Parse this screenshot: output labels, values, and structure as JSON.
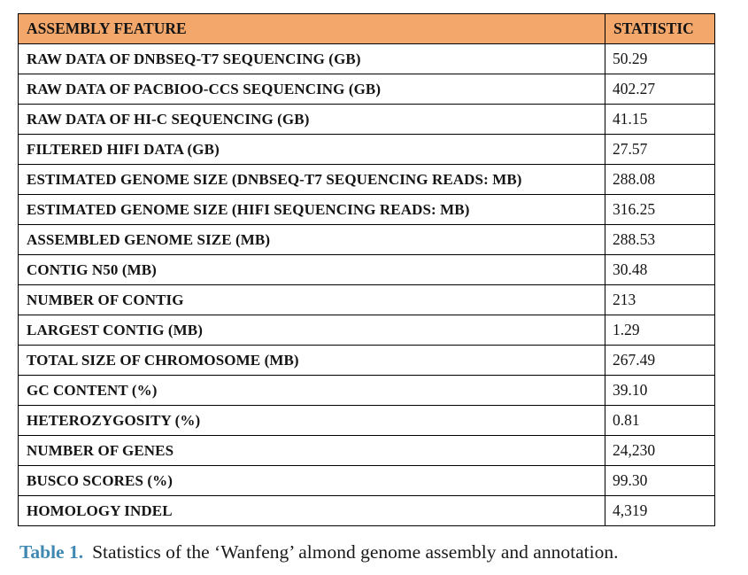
{
  "table": {
    "header": {
      "feature": "ASSEMBLY FEATURE",
      "statistic": "STATISTIC"
    },
    "rows": [
      {
        "feature": "RAW DATA OF DNBSEQ-T7 SEQUENCING (GB)",
        "statistic": "50.29"
      },
      {
        "feature": "RAW DATA OF PACBIOO-CCS SEQUENCING (GB)",
        "statistic": "402.27"
      },
      {
        "feature": "RAW DATA OF HI-C SEQUENCING (GB)",
        "statistic": "41.15"
      },
      {
        "feature": "FILTERED HIFI DATA (GB)",
        "statistic": "27.57"
      },
      {
        "feature": "ESTIMATED GENOME SIZE (DNBSEQ-T7 SEQUENCING READS: MB)",
        "statistic": "288.08"
      },
      {
        "feature": "ESTIMATED GENOME SIZE (HIFI SEQUENCING READS: MB)",
        "statistic": "316.25"
      },
      {
        "feature": "ASSEMBLED GENOME SIZE (MB)",
        "statistic": "288.53"
      },
      {
        "feature": "CONTIG N50 (MB)",
        "statistic": "30.48"
      },
      {
        "feature": "NUMBER OF CONTIG",
        "statistic": "213"
      },
      {
        "feature": "LARGEST CONTIG (MB)",
        "statistic": "1.29"
      },
      {
        "feature": "TOTAL SIZE OF CHROMOSOME (MB)",
        "statistic": "267.49"
      },
      {
        "feature": "GC CONTENT (%)",
        "statistic": "39.10"
      },
      {
        "feature": "HETEROZYGOSITY (%)",
        "statistic": "0.81"
      },
      {
        "feature": "NUMBER OF GENES",
        "statistic": "24,230"
      },
      {
        "feature": "BUSCO SCORES (%)",
        "statistic": "99.30"
      },
      {
        "feature": "HOMOLOGY INDEL",
        "statistic": "4,319"
      }
    ]
  },
  "caption": {
    "label": "Table 1.",
    "text": "Statistics of the ‘Wanfeng’ almond genome assembly and annotation."
  },
  "colors": {
    "header_bg": "#f4a76a",
    "border": "#000000",
    "text": "#141414",
    "caption_label": "#3f88b1"
  }
}
